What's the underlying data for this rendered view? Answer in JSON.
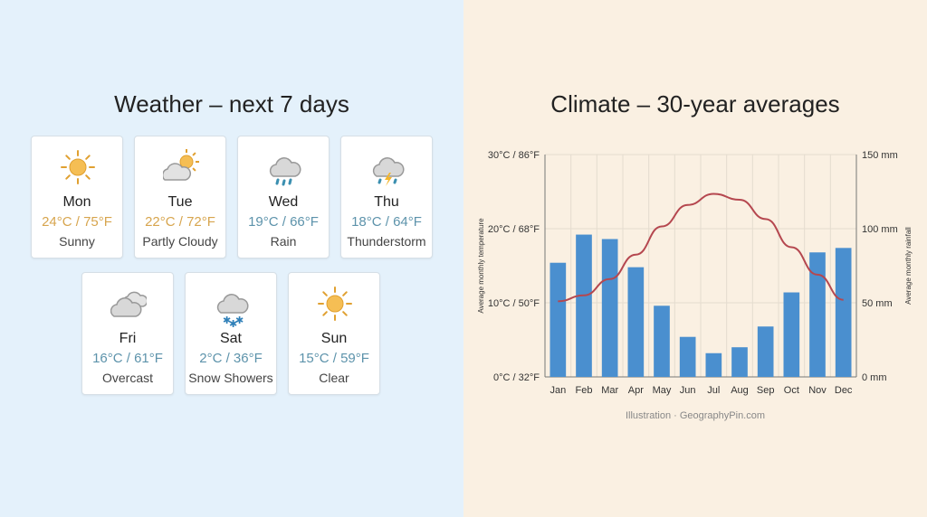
{
  "weather": {
    "title": "Weather – next 7 days",
    "days": [
      {
        "day": "Mon",
        "temp": "24°C / 75°F",
        "condition": "Sunny",
        "icon": "sun-icon",
        "tone": "warm"
      },
      {
        "day": "Tue",
        "temp": "22°C / 72°F",
        "condition": "Partly Cloudy",
        "icon": "partly-cloudy-icon",
        "tone": "warm"
      },
      {
        "day": "Wed",
        "temp": "19°C / 66°F",
        "condition": "Rain",
        "icon": "rain-icon",
        "tone": "cool"
      },
      {
        "day": "Thu",
        "temp": "18°C / 64°F",
        "condition": "Thunderstorm",
        "icon": "thunderstorm-icon",
        "tone": "cool"
      },
      {
        "day": "Fri",
        "temp": "16°C / 61°F",
        "condition": "Overcast",
        "icon": "overcast-icon",
        "tone": "cool"
      },
      {
        "day": "Sat",
        "temp": "2°C / 36°F",
        "condition": "Snow Showers",
        "icon": "snow-icon",
        "tone": "cool"
      },
      {
        "day": "Sun",
        "temp": "15°C / 59°F",
        "condition": "Clear",
        "icon": "sun-icon",
        "tone": "cool"
      }
    ]
  },
  "climate": {
    "title": "Climate – 30-year averages",
    "credit": "Illustration · GeographyPin.com"
  },
  "chart_data": {
    "type": "bar+line",
    "title": "Climate – 30-year averages",
    "categories": [
      "Jan",
      "Feb",
      "Mar",
      "Apr",
      "May",
      "Jun",
      "Jul",
      "Aug",
      "Sep",
      "Oct",
      "Nov",
      "Dec"
    ],
    "series": [
      {
        "kind": "bar",
        "axis": "right",
        "color": "#4a8fcf",
        "values": [
          77,
          96,
          93,
          74,
          48,
          27,
          16,
          20,
          34,
          57,
          84,
          87
        ]
      },
      {
        "kind": "line",
        "axis": "left",
        "color": "#b5474f",
        "values": [
          10.2,
          11,
          13.2,
          16.5,
          20.3,
          23.2,
          24.7,
          23.9,
          21.3,
          17.5,
          13.8,
          10.4
        ]
      }
    ],
    "ylabel_left": "Average monthly temperature",
    "ylabel_right": "Average monthly rainfall",
    "ylim_left": [
      0,
      30
    ],
    "ylim_right": [
      0,
      150
    ],
    "yticks_left": [
      "0°C / 32°F",
      "10°C / 50°F",
      "20°C / 68°F",
      "30°C / 86°F"
    ],
    "yticks_right": [
      "0 mm",
      "50 mm",
      "100 mm",
      "150 mm"
    ],
    "grid": true
  },
  "colors": {
    "warm": "#d7a54e",
    "cool": "#5d93ab"
  }
}
